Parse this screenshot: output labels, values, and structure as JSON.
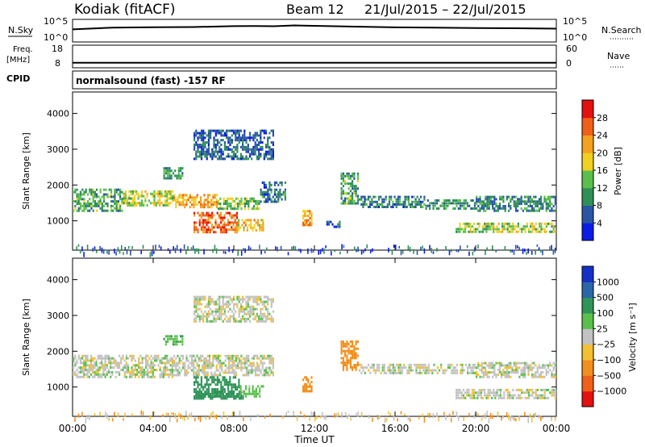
{
  "header": {
    "station": "Kodiak (fitACF)",
    "beam": "Beam 12",
    "date_range": "21/Jul/2015 – 22/Jul/2015"
  },
  "chart_data": [
    {
      "type": "line",
      "label_left": "N.Sky",
      "label_right": "N.Search",
      "left_ticks": [
        "10^5",
        "10^0"
      ],
      "right_ticks": [
        "10^5",
        "10^0"
      ],
      "yscale": "log",
      "ylim": [
        1,
        100000
      ],
      "series": [
        {
          "x": [
            0,
            2,
            4,
            6,
            8,
            9,
            10,
            11,
            12,
            14,
            16,
            18,
            20,
            22,
            24
          ],
          "y": [
            600,
            1500,
            1800,
            2000,
            3200,
            3500,
            3000,
            4500,
            3800,
            2500,
            1700,
            1500,
            1200,
            1100,
            900
          ]
        }
      ]
    },
    {
      "type": "line",
      "label_left": "Freq.",
      "left_unit": "[MHz]",
      "label_right": "Nave",
      "left_ticks": [
        "18",
        "8"
      ],
      "right_ticks": [
        "60",
        "0"
      ],
      "ylim": [
        8,
        18
      ],
      "series": [
        {
          "x": [
            0,
            24
          ],
          "y": [
            10.2,
            10.2
          ]
        }
      ]
    },
    {
      "type": "text",
      "label_left": "CPID",
      "text": "normalsound (fast) -157 RF"
    },
    {
      "type": "heatmap",
      "ylabel": "Slant Range [km]",
      "yticks": [
        1000,
        2000,
        3000,
        4000
      ],
      "ylim": [
        180,
        4600
      ],
      "xlim": [
        0,
        24
      ],
      "colorbar": {
        "label": "Power [dB]",
        "ticks": [
          "4",
          "8",
          "12",
          "16",
          "20",
          "24",
          "28"
        ],
        "colors": [
          "#0a1ce6",
          "#2a55a5",
          "#2f8f57",
          "#5ac04b",
          "#f0d020",
          "#f3a11e",
          "#f06018",
          "#e51010"
        ]
      },
      "regions": [
        {
          "t0": 0.0,
          "t1": 2.5,
          "r0": 1250,
          "r1": 1900,
          "value": 12
        },
        {
          "t0": 2.5,
          "t1": 5.0,
          "r0": 1400,
          "r1": 1850,
          "value": 16
        },
        {
          "t0": 5.0,
          "t1": 7.2,
          "r0": 1350,
          "r1": 1750,
          "value": 22
        },
        {
          "t0": 7.2,
          "t1": 9.3,
          "r0": 1300,
          "r1": 1650,
          "value": 14
        },
        {
          "t0": 9.3,
          "t1": 10.6,
          "r0": 1500,
          "r1": 2100,
          "value": 8
        },
        {
          "t0": 6.0,
          "t1": 8.2,
          "r0": 650,
          "r1": 1250,
          "value": 26
        },
        {
          "t0": 8.2,
          "t1": 9.5,
          "r0": 700,
          "r1": 1050,
          "value": 20
        },
        {
          "t0": 6.0,
          "t1": 10.0,
          "r0": 2700,
          "r1": 3550,
          "value": 6
        },
        {
          "t0": 4.5,
          "t1": 5.5,
          "r0": 2150,
          "r1": 2500,
          "value": 10
        },
        {
          "t0": 11.4,
          "t1": 11.9,
          "r0": 850,
          "r1": 1300,
          "value": 22
        },
        {
          "t0": 12.5,
          "t1": 13.3,
          "r0": 800,
          "r1": 1000,
          "value": 6
        },
        {
          "t0": 13.3,
          "t1": 14.2,
          "r0": 1450,
          "r1": 2350,
          "value": 12
        },
        {
          "t0": 14.2,
          "t1": 17.5,
          "r0": 1350,
          "r1": 1700,
          "value": 8
        },
        {
          "t0": 17.5,
          "t1": 20.0,
          "r0": 1300,
          "r1": 1600,
          "value": 10
        },
        {
          "t0": 20.0,
          "t1": 24.0,
          "r0": 1250,
          "r1": 1700,
          "value": 9
        },
        {
          "t0": 19.0,
          "t1": 24.0,
          "r0": 650,
          "r1": 950,
          "value": 16
        }
      ]
    },
    {
      "type": "heatmap",
      "ylabel": "Slant Range [km]",
      "yticks": [
        1000,
        2000,
        3000,
        4000
      ],
      "ylim": [
        180,
        4600
      ],
      "xlim": [
        0,
        24
      ],
      "colorbar": {
        "label": "Velocity [m s⁻¹]",
        "ticks": [
          "1000",
          "500",
          "100",
          "25",
          "−25",
          "−100",
          "−500",
          "−1000"
        ],
        "colors": [
          "#1530c8",
          "#2a66a8",
          "#2f9458",
          "#5ac04b",
          "#c2c2c2",
          "#f2c030",
          "#f38f1d",
          "#f06018",
          "#e51010"
        ]
      },
      "regions": [
        {
          "t0": 0.0,
          "t1": 5.0,
          "r0": 1250,
          "r1": 1900,
          "value": 0
        },
        {
          "t0": 5.0,
          "t1": 10.0,
          "r0": 1300,
          "r1": 1900,
          "value": 0
        },
        {
          "t0": 6.0,
          "t1": 8.3,
          "r0": 700,
          "r1": 1300,
          "value": 300
        },
        {
          "t0": 6.0,
          "t1": 8.5,
          "r0": 650,
          "r1": 900,
          "value": 150
        },
        {
          "t0": 8.3,
          "t1": 9.5,
          "r0": 700,
          "r1": 1050,
          "value": 60
        },
        {
          "t0": 6.0,
          "t1": 10.0,
          "r0": 2800,
          "r1": 3550,
          "value": 0
        },
        {
          "t0": 4.5,
          "t1": 5.5,
          "r0": 2150,
          "r1": 2450,
          "value": 70
        },
        {
          "t0": 11.4,
          "t1": 11.9,
          "r0": 850,
          "r1": 1300,
          "value": -200
        },
        {
          "t0": 13.3,
          "t1": 14.2,
          "r0": 1450,
          "r1": 2300,
          "value": -200
        },
        {
          "t0": 14.2,
          "t1": 20.0,
          "r0": 1350,
          "r1": 1650,
          "value": 0
        },
        {
          "t0": 20.0,
          "t1": 24.0,
          "r0": 1250,
          "r1": 1700,
          "value": 0
        },
        {
          "t0": 19.0,
          "t1": 24.0,
          "r0": 650,
          "r1": 950,
          "value": 0
        }
      ]
    }
  ],
  "xaxis": {
    "label": "Time UT",
    "ticks": [
      "00:00",
      "04:00",
      "08:00",
      "12:00",
      "16:00",
      "20:00",
      "00:00"
    ],
    "range_hours": [
      0,
      24
    ]
  }
}
